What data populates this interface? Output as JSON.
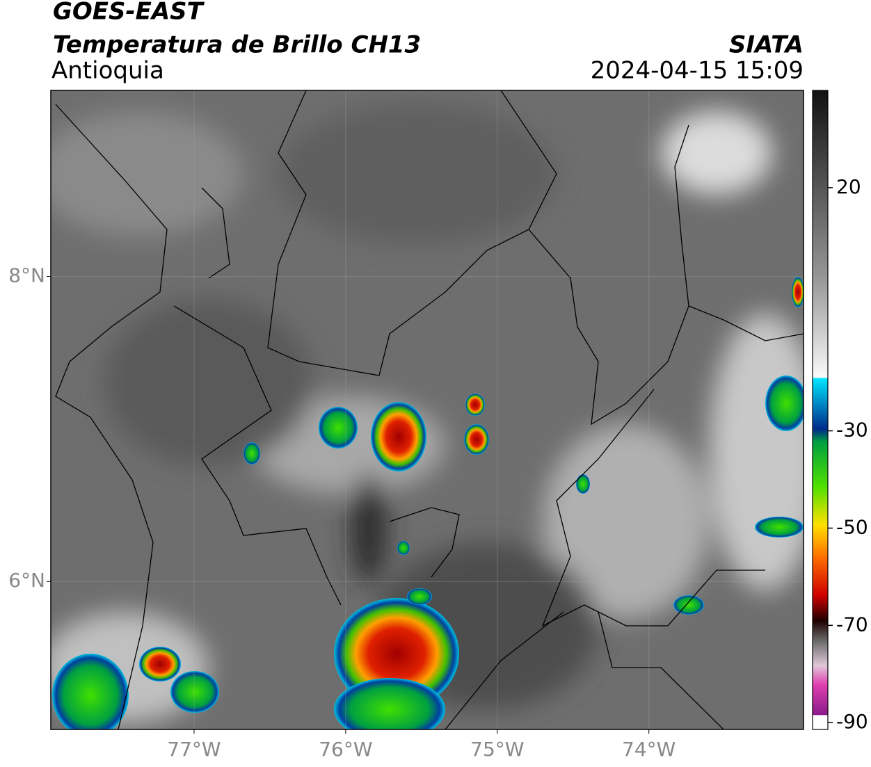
{
  "map": {
    "title": "GOES-EAST",
    "subtitle": "Temperatura de Brillo CH13",
    "region": "Antioquia",
    "source": "SIATA",
    "datetime": "2024-04-15 15:09",
    "xlim": [
      -77.945,
      -72.98
    ],
    "ylim": [
      5.03,
      9.22
    ],
    "xticks": [
      {
        "value": -77,
        "label": "77°W"
      },
      {
        "value": -76,
        "label": "76°W"
      },
      {
        "value": -75,
        "label": "75°W"
      },
      {
        "value": -74,
        "label": "74°W"
      }
    ],
    "yticks": [
      {
        "value": 8,
        "label": "8°N"
      },
      {
        "value": 6,
        "label": "6°N"
      }
    ],
    "grid": true,
    "colorbar": {
      "clim": [
        -91.4,
        40
      ],
      "ticks": [
        20,
        -30,
        -50,
        -70,
        -90
      ]
    }
  }
}
